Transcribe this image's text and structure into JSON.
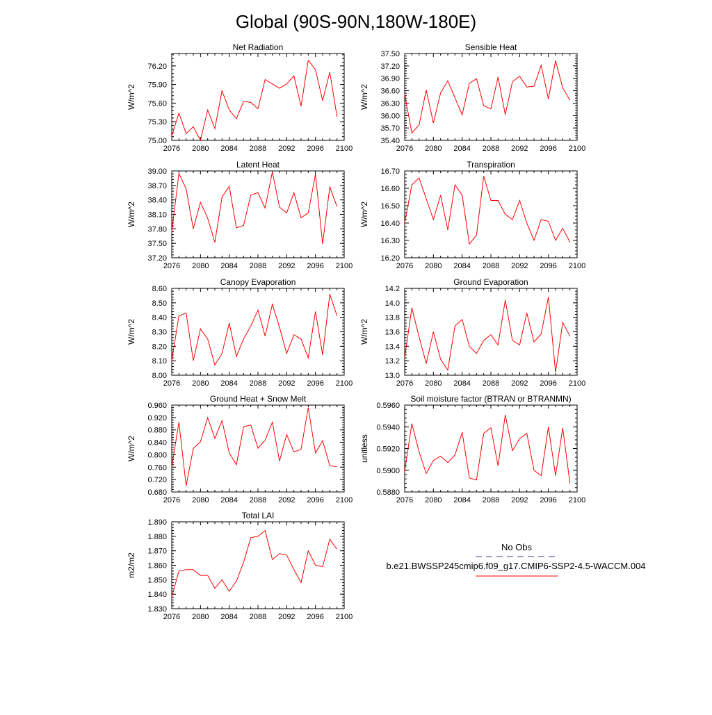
{
  "title": "Global (90S-90N,180W-180E)",
  "colors": {
    "model_line": "#ff0000",
    "obs_line": "#3d3d8f"
  },
  "legend": {
    "obs_label": "No Obs",
    "model_label": "b.e21.BWSSP245cmip6.f09_g17.CMIP6-SSP2-4.5-WACCM.004"
  },
  "chart_data": [
    {
      "type": "line",
      "title": "Net Radiation",
      "ylabel": "W/m^2",
      "xlim": [
        2076,
        2100
      ],
      "ylim": [
        75.0,
        76.4
      ],
      "xticks": [
        "2076",
        "2080",
        "2084",
        "2088",
        "2092",
        "2096",
        "2100"
      ],
      "yticks": [
        "75.00",
        "75.30",
        "75.60",
        "75.90",
        "76.20"
      ],
      "x": [
        2076,
        2077,
        2078,
        2079,
        2080,
        2081,
        2082,
        2083,
        2084,
        2085,
        2086,
        2087,
        2088,
        2089,
        2090,
        2091,
        2092,
        2093,
        2094,
        2095,
        2096,
        2097,
        2098,
        2099
      ],
      "series": [
        {
          "values": [
            75.07,
            75.44,
            75.11,
            75.22,
            75.0,
            75.49,
            75.19,
            75.8,
            75.49,
            75.35,
            75.63,
            75.61,
            75.51,
            75.98,
            75.91,
            75.84,
            75.91,
            76.04,
            75.55,
            76.29,
            76.14,
            75.64,
            76.1,
            75.38
          ]
        }
      ]
    },
    {
      "type": "line",
      "title": "Sensible Heat",
      "ylabel": "W/m^2",
      "xlim": [
        2076,
        2100
      ],
      "ylim": [
        35.4,
        37.5
      ],
      "xticks": [
        "2076",
        "2080",
        "2084",
        "2088",
        "2092",
        "2096",
        "2100"
      ],
      "yticks": [
        "35.40",
        "35.70",
        "36.00",
        "36.30",
        "36.60",
        "36.90",
        "37.20",
        "37.50"
      ],
      "x": [
        2076,
        2077,
        2078,
        2079,
        2080,
        2081,
        2082,
        2083,
        2084,
        2085,
        2086,
        2087,
        2088,
        2089,
        2090,
        2091,
        2092,
        2093,
        2094,
        2095,
        2096,
        2097,
        2098,
        2099
      ],
      "series": [
        {
          "values": [
            36.52,
            35.58,
            35.77,
            36.62,
            35.82,
            36.55,
            36.84,
            36.43,
            36.02,
            36.78,
            36.89,
            36.24,
            36.16,
            36.93,
            36.02,
            36.82,
            36.95,
            36.69,
            36.71,
            37.22,
            36.4,
            37.33,
            36.67,
            36.37
          ]
        }
      ]
    },
    {
      "type": "line",
      "title": "Latent Heat",
      "ylabel": "W/m^2",
      "xlim": [
        2076,
        2100
      ],
      "ylim": [
        37.2,
        39.0
      ],
      "xticks": [
        "2076",
        "2080",
        "2084",
        "2088",
        "2092",
        "2096",
        "2100"
      ],
      "yticks": [
        "37.20",
        "37.50",
        "37.80",
        "38.10",
        "38.40",
        "38.70",
        "39.00"
      ],
      "x": [
        2076,
        2077,
        2078,
        2079,
        2080,
        2081,
        2082,
        2083,
        2084,
        2085,
        2086,
        2087,
        2088,
        2089,
        2090,
        2091,
        2092,
        2093,
        2094,
        2095,
        2096,
        2097,
        2098,
        2099
      ],
      "series": [
        {
          "values": [
            37.73,
            38.95,
            38.63,
            37.8,
            38.35,
            38.02,
            37.52,
            38.46,
            38.68,
            37.82,
            37.87,
            38.5,
            38.55,
            38.23,
            38.98,
            38.25,
            38.13,
            38.55,
            38.03,
            38.13,
            38.93,
            37.49,
            38.67,
            38.26
          ]
        }
      ]
    },
    {
      "type": "line",
      "title": "Transpiration",
      "ylabel": "W/m^2",
      "xlim": [
        2076,
        2100
      ],
      "ylim": [
        16.2,
        16.7
      ],
      "xticks": [
        "2076",
        "2080",
        "2084",
        "2088",
        "2092",
        "2096",
        "2100"
      ],
      "yticks": [
        "16.20",
        "16.30",
        "16.40",
        "16.50",
        "16.60",
        "16.70"
      ],
      "x": [
        2076,
        2077,
        2078,
        2079,
        2080,
        2081,
        2082,
        2083,
        2084,
        2085,
        2086,
        2087,
        2088,
        2089,
        2090,
        2091,
        2092,
        2093,
        2094,
        2095,
        2096,
        2097,
        2098,
        2099
      ],
      "series": [
        {
          "values": [
            16.4,
            16.62,
            16.66,
            16.54,
            16.42,
            16.56,
            16.36,
            16.62,
            16.56,
            16.28,
            16.33,
            16.67,
            16.53,
            16.53,
            16.45,
            16.42,
            16.53,
            16.4,
            16.3,
            16.42,
            16.41,
            16.3,
            16.37,
            16.29
          ]
        }
      ]
    },
    {
      "type": "line",
      "title": "Canopy Evaporation",
      "ylabel": "W/m^2",
      "xlim": [
        2076,
        2100
      ],
      "ylim": [
        8.0,
        8.6
      ],
      "xticks": [
        "2076",
        "2080",
        "2084",
        "2088",
        "2092",
        "2096",
        "2100"
      ],
      "yticks": [
        "8.00",
        "8.10",
        "8.20",
        "8.30",
        "8.40",
        "8.50",
        "8.60"
      ],
      "x": [
        2076,
        2077,
        2078,
        2079,
        2080,
        2081,
        2082,
        2083,
        2084,
        2085,
        2086,
        2087,
        2088,
        2089,
        2090,
        2091,
        2092,
        2093,
        2094,
        2095,
        2096,
        2097,
        2098,
        2099
      ],
      "series": [
        {
          "values": [
            8.1,
            8.41,
            8.43,
            8.1,
            8.32,
            8.25,
            8.07,
            8.15,
            8.36,
            8.13,
            8.25,
            8.34,
            8.45,
            8.27,
            8.49,
            8.33,
            8.15,
            8.28,
            8.25,
            8.12,
            8.44,
            8.14,
            8.56,
            8.41
          ]
        }
      ]
    },
    {
      "type": "line",
      "title": "Ground Evaporation",
      "ylabel": "W/m^2",
      "xlim": [
        2076,
        2100
      ],
      "ylim": [
        13.0,
        14.2
      ],
      "xticks": [
        "2076",
        "2080",
        "2084",
        "2088",
        "2092",
        "2096",
        "2100"
      ],
      "yticks": [
        "13.0",
        "13.2",
        "13.4",
        "13.6",
        "13.8",
        "14.0",
        "14.2"
      ],
      "x": [
        2076,
        2077,
        2078,
        2079,
        2080,
        2081,
        2082,
        2083,
        2084,
        2085,
        2086,
        2087,
        2088,
        2089,
        2090,
        2091,
        2092,
        2093,
        2094,
        2095,
        2096,
        2097,
        2098,
        2099
      ],
      "series": [
        {
          "values": [
            13.24,
            13.93,
            13.53,
            13.16,
            13.6,
            13.22,
            13.07,
            13.68,
            13.77,
            13.4,
            13.3,
            13.48,
            13.56,
            13.42,
            14.04,
            13.48,
            13.42,
            13.86,
            13.46,
            13.57,
            14.08,
            13.04,
            13.73,
            13.54
          ]
        }
      ]
    },
    {
      "type": "line",
      "title": "Ground Heat + Snow Melt",
      "ylabel": "W/m^2",
      "xlim": [
        2076,
        2100
      ],
      "ylim": [
        0.68,
        0.96
      ],
      "xticks": [
        "2076",
        "2080",
        "2084",
        "2088",
        "2092",
        "2096",
        "2100"
      ],
      "yticks": [
        "0.680",
        "0.720",
        "0.760",
        "0.800",
        "0.840",
        "0.880",
        "0.920",
        "0.960"
      ],
      "x": [
        2076,
        2077,
        2078,
        2079,
        2080,
        2081,
        2082,
        2083,
        2084,
        2085,
        2086,
        2087,
        2088,
        2089,
        2090,
        2091,
        2092,
        2093,
        2094,
        2095,
        2096,
        2097,
        2098,
        2099
      ],
      "series": [
        {
          "values": [
            0.76,
            0.905,
            0.7,
            0.82,
            0.842,
            0.92,
            0.852,
            0.91,
            0.806,
            0.768,
            0.89,
            0.896,
            0.821,
            0.847,
            0.905,
            0.78,
            0.865,
            0.809,
            0.817,
            0.952,
            0.806,
            0.845,
            0.765,
            0.761
          ]
        }
      ]
    },
    {
      "type": "line",
      "title": "Soil moisture factor (BTRAN or BTRANMN)",
      "ylabel": "unitless",
      "xlim": [
        2076,
        2100
      ],
      "ylim": [
        0.588,
        0.596
      ],
      "xticks": [
        "2076",
        "2080",
        "2084",
        "2088",
        "2092",
        "2096",
        "2100"
      ],
      "yticks": [
        "0.5880",
        "0.5900",
        "0.5920",
        "0.5940",
        "0.5960"
      ],
      "x": [
        2076,
        2077,
        2078,
        2079,
        2080,
        2081,
        2082,
        2083,
        2084,
        2085,
        2086,
        2087,
        2088,
        2089,
        2090,
        2091,
        2092,
        2093,
        2094,
        2095,
        2096,
        2097,
        2098,
        2099
      ],
      "series": [
        {
          "values": [
            0.5899,
            0.5943,
            0.5917,
            0.5897,
            0.5909,
            0.5913,
            0.5907,
            0.5914,
            0.5935,
            0.5893,
            0.5891,
            0.5934,
            0.5939,
            0.5904,
            0.5951,
            0.5918,
            0.5929,
            0.5934,
            0.59,
            0.5895,
            0.594,
            0.5895,
            0.5939,
            0.5888
          ]
        }
      ]
    },
    {
      "type": "line",
      "title": "Total LAI",
      "ylabel": "m2/m2",
      "xlim": [
        2076,
        2100
      ],
      "ylim": [
        1.83,
        1.89
      ],
      "xticks": [
        "2076",
        "2080",
        "2084",
        "2088",
        "2092",
        "2096",
        "2100"
      ],
      "yticks": [
        "1.830",
        "1.840",
        "1.850",
        "1.860",
        "1.870",
        "1.880",
        "1.890"
      ],
      "x": [
        2076,
        2077,
        2078,
        2079,
        2080,
        2081,
        2082,
        2083,
        2084,
        2085,
        2086,
        2087,
        2088,
        2089,
        2090,
        2091,
        2092,
        2093,
        2094,
        2095,
        2096,
        2097,
        2098,
        2099
      ],
      "series": [
        {
          "values": [
            1.838,
            1.856,
            1.857,
            1.857,
            1.853,
            1.853,
            1.844,
            1.85,
            1.842,
            1.849,
            1.862,
            1.879,
            1.88,
            1.884,
            1.864,
            1.868,
            1.867,
            1.857,
            1.848,
            1.87,
            1.86,
            1.859,
            1.878,
            1.871
          ]
        }
      ]
    }
  ]
}
